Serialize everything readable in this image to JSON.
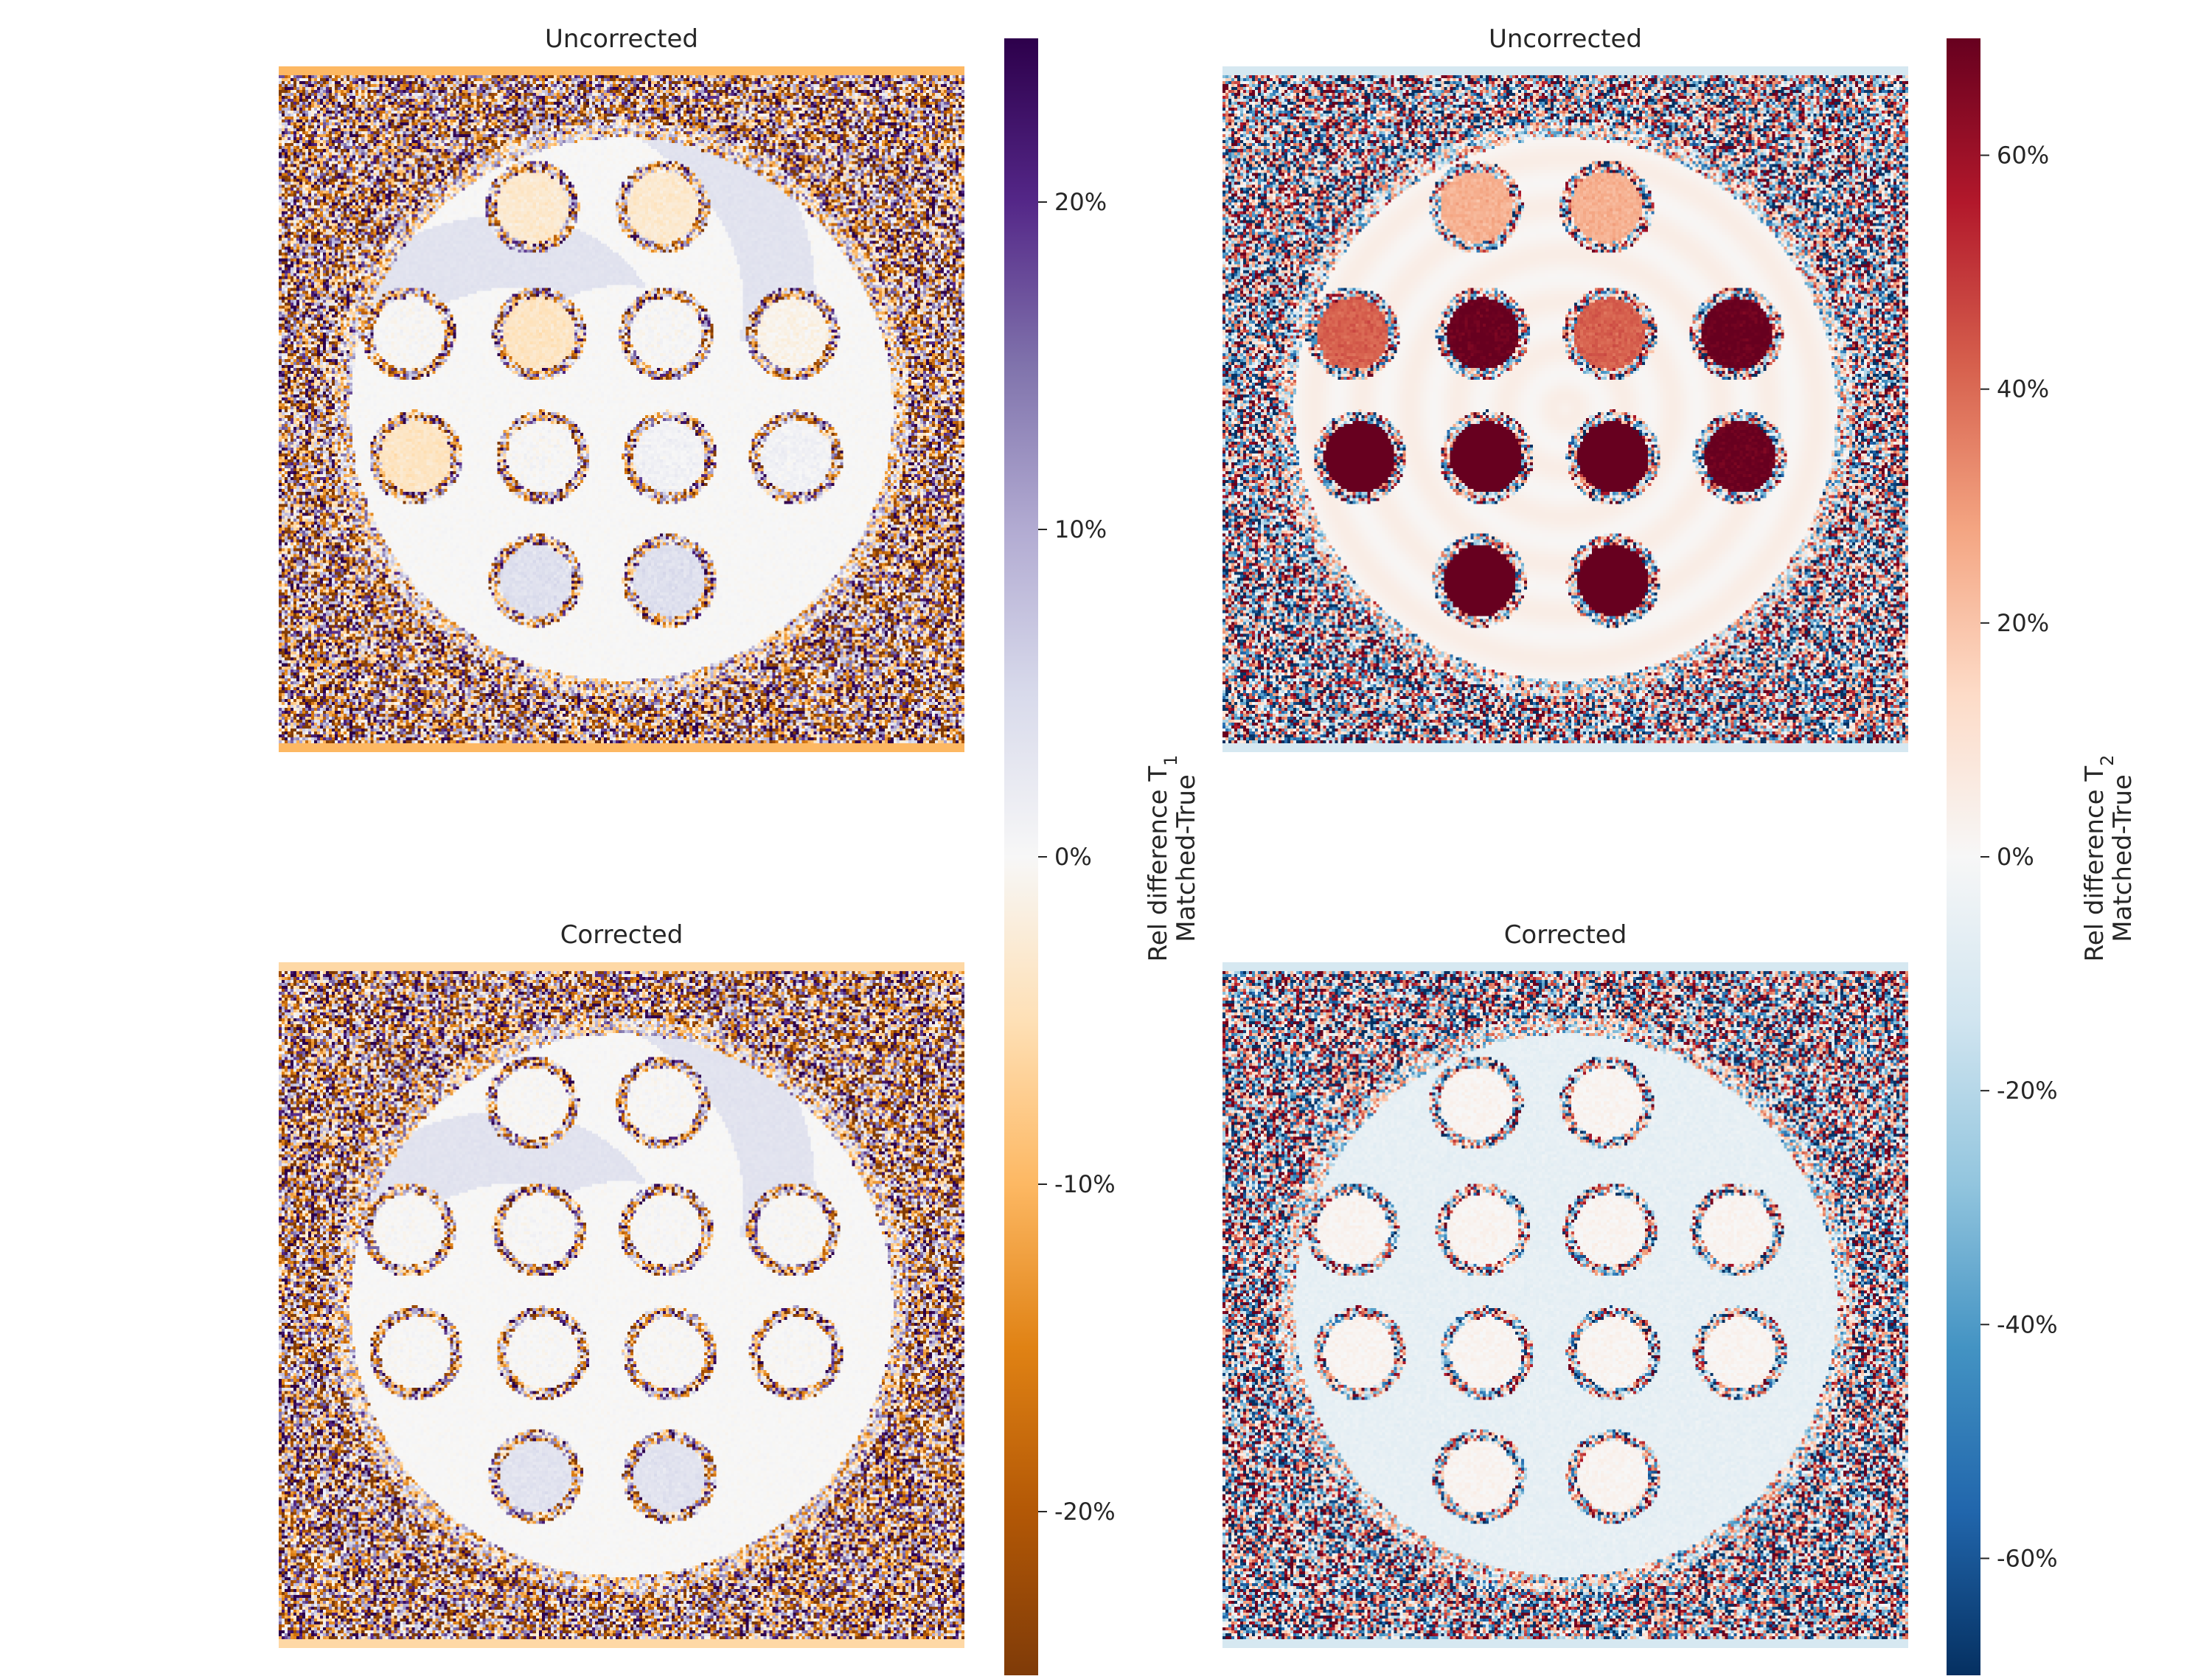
{
  "chart_data": [
    {
      "type": "heatmap",
      "title": "Uncorrected",
      "colormap": "PuOr",
      "colorbar_id": "t1",
      "pattern": "t1-uncorrected"
    },
    {
      "type": "heatmap",
      "title": "Uncorrected",
      "colormap": "RdBu_r",
      "colorbar_id": "t2",
      "pattern": "t2-uncorrected"
    },
    {
      "type": "heatmap",
      "title": "Corrected",
      "colormap": "PuOr",
      "colorbar_id": "t1",
      "pattern": "t1-corrected"
    },
    {
      "type": "heatmap",
      "title": "Corrected",
      "colormap": "RdBu_r",
      "colorbar_id": "t2",
      "pattern": "t2-corrected"
    }
  ],
  "colorbars": [
    {
      "id": "t1",
      "label_line1": "Rel difference T",
      "label_sub": "1",
      "label_line2": "Matched-True",
      "range": [
        -0.25,
        0.25
      ],
      "ticks": [
        0.2,
        0.1,
        0.0,
        -0.1,
        -0.2
      ],
      "tick_labels": [
        "20%",
        "10%",
        "0%",
        "-10%",
        "-20%"
      ],
      "colors": [
        "#7f3b08",
        "#b35806",
        "#e08214",
        "#fdb863",
        "#fee0b6",
        "#f7f7f7",
        "#d8daeb",
        "#b2abd2",
        "#8073ac",
        "#542788",
        "#2d004b"
      ]
    },
    {
      "id": "t2",
      "label_line1": "Rel difference T",
      "label_sub": "2",
      "label_line2": "Matched-True",
      "range": [
        -0.7,
        0.7
      ],
      "ticks": [
        0.6,
        0.4,
        0.2,
        0.0,
        -0.2,
        -0.4,
        -0.6
      ],
      "tick_labels": [
        "60%",
        "40%",
        "20%",
        "0%",
        "-20%",
        "-40%",
        "-60%"
      ],
      "colors": [
        "#053061",
        "#2166ac",
        "#4393c3",
        "#92c5de",
        "#d1e5f0",
        "#f7f7f7",
        "#fddbc7",
        "#f4a582",
        "#d6604d",
        "#b2182b",
        "#67001f"
      ]
    }
  ]
}
